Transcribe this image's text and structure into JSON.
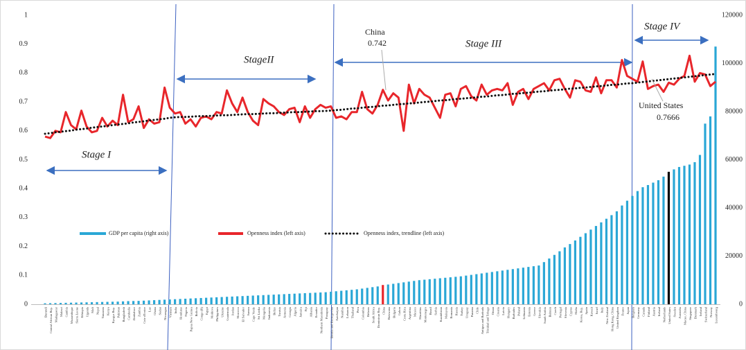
{
  "chart_data": {
    "type": "bar_line",
    "categories": [
      "Burundi",
      "Central African Rep.",
      "Madagascar",
      "Malawi",
      "Gambia",
      "Mozambique",
      "Sierra Leone",
      "Ethiopia",
      "Uganda",
      "Mali",
      "Nepal",
      "Tanzania",
      "Kenya",
      "Kyrgyz Rep.",
      "Pakistan",
      "Bangladesh",
      "Cambodia",
      "Zimbabwe",
      "Zambia",
      "Cote d'Ivoire",
      "Lao",
      "Ghana",
      "Sudan",
      "Nicaragua",
      "Vietnam",
      "India",
      "Honduras",
      "Nigeria",
      "Papua New Guinea",
      "Bolivia",
      "Congo (R)",
      "Egypt",
      "Moldova",
      "Philippines",
      "Ukraine",
      "Guatemala",
      "Jordan",
      "Morocco",
      "El Salvador",
      "Samoa",
      "Cape Verde",
      "Sri Lanka",
      "Mongolia",
      "Indonesia",
      "Belize",
      "Tunisia",
      "Armenia",
      "Georgia",
      "Algeria",
      "Jamaica",
      "Fiji",
      "Albania",
      "Ecuador",
      "Northern Macedonia",
      "Paraguay",
      "Bosnia and Herzegovina",
      "Azerbaijan",
      "Namibia",
      "Lebanon",
      "Thailand",
      "Peru",
      "Colombia",
      "Belarus",
      "South Africa",
      "Dominican Rep.",
      "China",
      "Botswana",
      "Bulgaria",
      "Gabon",
      "Costa Rica",
      "Argentina",
      "Mexico",
      "Mauritius",
      "Montenegro",
      "Brazil",
      "Serbia",
      "Kazakhstan",
      "Malaysia",
      "Romania",
      "Russia",
      "Turkey",
      "Uruguay",
      "Panama",
      "Chile",
      "Antigua and Barbuda",
      "Trinidad and Tobago",
      "Oman",
      "Croatia",
      "Latvia",
      "Hungary",
      "Barbados",
      "Poland",
      "Lithuania",
      "Estonia",
      "Greece",
      "Slovakia",
      "Saudi Arabia",
      "Bahrain",
      "Czech",
      "Portugal",
      "Slovenia",
      "Cyprus",
      "Malta",
      "Korea, Rep.",
      "Spain",
      "Kuwait",
      "Israel",
      "Italy",
      "New Zealand",
      "Hong Kong, China",
      "United Kingdom",
      "France",
      "Japan",
      "Belgium",
      "Germany",
      "Canada",
      "Finland",
      "Austria",
      "Iceland",
      "Netherlands",
      "United States",
      "Sweden",
      "Australia",
      "Macao, China",
      "Singapore",
      "Denmark",
      "Ireland",
      "Switzerland",
      "Norway",
      "Luxembourg"
    ],
    "series": [
      {
        "name": "GDP per capita (right axis)",
        "color": "#2aa7d6",
        "axis": "y2",
        "values": [
          400,
          450,
          500,
          550,
          600,
          650,
          700,
          750,
          800,
          850,
          900,
          950,
          1000,
          1050,
          1100,
          1200,
          1300,
          1350,
          1400,
          1500,
          1600,
          1700,
          1800,
          1900,
          2000,
          2100,
          2200,
          2300,
          2400,
          2500,
          2600,
          2700,
          2800,
          2900,
          3000,
          3100,
          3200,
          3300,
          3400,
          3500,
          3600,
          3700,
          3800,
          3900,
          4000,
          4100,
          4200,
          4300,
          4400,
          4500,
          4600,
          4700,
          4800,
          4900,
          5000,
          5200,
          5400,
          5600,
          5800,
          6000,
          6200,
          6500,
          6800,
          7100,
          7400,
          8000,
          8200,
          8500,
          8800,
          9100,
          9400,
          9700,
          10000,
          10200,
          10400,
          10600,
          10800,
          11000,
          11200,
          11400,
          11600,
          11900,
          12200,
          12500,
          12800,
          13100,
          13400,
          13700,
          14000,
          14300,
          14600,
          14900,
          15200,
          15500,
          15800,
          16100,
          17500,
          19000,
          20500,
          22000,
          23600,
          25000,
          26500,
          28000,
          29500,
          31000,
          32500,
          34000,
          35500,
          37000,
          38600,
          41000,
          43000,
          45000,
          47000,
          48600,
          49500,
          50500,
          51500,
          53000,
          55000,
          56000,
          57000,
          57500,
          58000,
          59000,
          62000,
          75000,
          78000,
          107000
        ]
      },
      {
        "name": "Openness index (left axis)",
        "color": "#e8262b",
        "values": [
          0.58,
          0.575,
          0.6,
          0.595,
          0.665,
          0.62,
          0.605,
          0.67,
          0.615,
          0.595,
          0.6,
          0.645,
          0.615,
          0.635,
          0.62,
          0.725,
          0.63,
          0.64,
          0.685,
          0.61,
          0.64,
          0.625,
          0.63,
          0.75,
          0.68,
          0.66,
          0.665,
          0.625,
          0.64,
          0.615,
          0.645,
          0.65,
          0.64,
          0.665,
          0.66,
          0.74,
          0.695,
          0.665,
          0.715,
          0.665,
          0.635,
          0.62,
          0.71,
          0.695,
          0.685,
          0.665,
          0.655,
          0.675,
          0.68,
          0.63,
          0.685,
          0.645,
          0.675,
          0.69,
          0.68,
          0.685,
          0.645,
          0.65,
          0.64,
          0.665,
          0.665,
          0.735,
          0.675,
          0.66,
          0.69,
          0.742,
          0.705,
          0.73,
          0.715,
          0.6,
          0.76,
          0.695,
          0.745,
          0.725,
          0.715,
          0.68,
          0.645,
          0.725,
          0.73,
          0.685,
          0.745,
          0.755,
          0.72,
          0.705,
          0.76,
          0.725,
          0.74,
          0.745,
          0.74,
          0.765,
          0.69,
          0.735,
          0.745,
          0.71,
          0.745,
          0.755,
          0.765,
          0.74,
          0.775,
          0.78,
          0.745,
          0.715,
          0.775,
          0.77,
          0.74,
          0.735,
          0.785,
          0.73,
          0.775,
          0.775,
          0.75,
          0.845,
          0.79,
          0.78,
          0.77,
          0.84,
          0.745,
          0.755,
          0.76,
          0.735,
          0.7666,
          0.76,
          0.78,
          0.79,
          0.86,
          0.77,
          0.8,
          0.795,
          0.755,
          0.77
        ]
      },
      {
        "name": "Openness index, trendline (left axis)",
        "color": "#111111",
        "values": [
          0.59,
          0.592,
          0.595,
          0.597,
          0.599,
          0.601,
          0.604,
          0.606,
          0.608,
          0.611,
          0.613,
          0.615,
          0.617,
          0.62,
          0.622,
          0.624,
          0.626,
          0.629,
          0.631,
          0.633,
          0.636,
          0.638,
          0.64,
          0.642,
          0.645,
          0.647,
          0.648,
          0.648,
          0.649,
          0.65,
          0.651,
          0.651,
          0.652,
          0.653,
          0.654,
          0.654,
          0.655,
          0.656,
          0.657,
          0.658,
          0.658,
          0.659,
          0.66,
          0.661,
          0.661,
          0.662,
          0.663,
          0.664,
          0.665,
          0.665,
          0.666,
          0.667,
          0.668,
          0.668,
          0.669,
          0.67,
          0.672,
          0.673,
          0.675,
          0.677,
          0.678,
          0.68,
          0.682,
          0.683,
          0.685,
          0.687,
          0.688,
          0.69,
          0.692,
          0.693,
          0.695,
          0.696,
          0.698,
          0.7,
          0.701,
          0.703,
          0.705,
          0.706,
          0.708,
          0.71,
          0.711,
          0.713,
          0.714,
          0.716,
          0.718,
          0.719,
          0.721,
          0.723,
          0.724,
          0.726,
          0.728,
          0.729,
          0.731,
          0.732,
          0.734,
          0.736,
          0.737,
          0.739,
          0.741,
          0.742,
          0.744,
          0.746,
          0.747,
          0.749,
          0.75,
          0.752,
          0.754,
          0.755,
          0.757,
          0.759,
          0.76,
          0.762,
          0.764,
          0.765,
          0.767,
          0.769,
          0.771,
          0.773,
          0.775,
          0.777,
          0.779,
          0.781,
          0.783,
          0.785,
          0.787,
          0.789,
          0.791,
          0.793,
          0.795,
          0.797
        ]
      }
    ],
    "point_colors": {
      "China": "#e8262b",
      "United States": "#000000"
    },
    "ylim": [
      0,
      1
    ],
    "yticks": [
      0,
      0.1,
      0.2,
      0.3,
      0.4,
      0.5,
      0.6,
      0.7,
      0.8,
      0.9,
      1
    ],
    "y2lim": [
      0,
      120000
    ],
    "y2ticks": [
      0,
      20000,
      40000,
      60000,
      80000,
      100000,
      120000
    ],
    "annotations": {
      "china": "China",
      "china_value": "0.742",
      "us": "United States",
      "us_value": "0.7666",
      "stage1": "Stage I",
      "stage2": "StageII",
      "stage3": "Stage III",
      "stage4": "Stage IV"
    }
  }
}
